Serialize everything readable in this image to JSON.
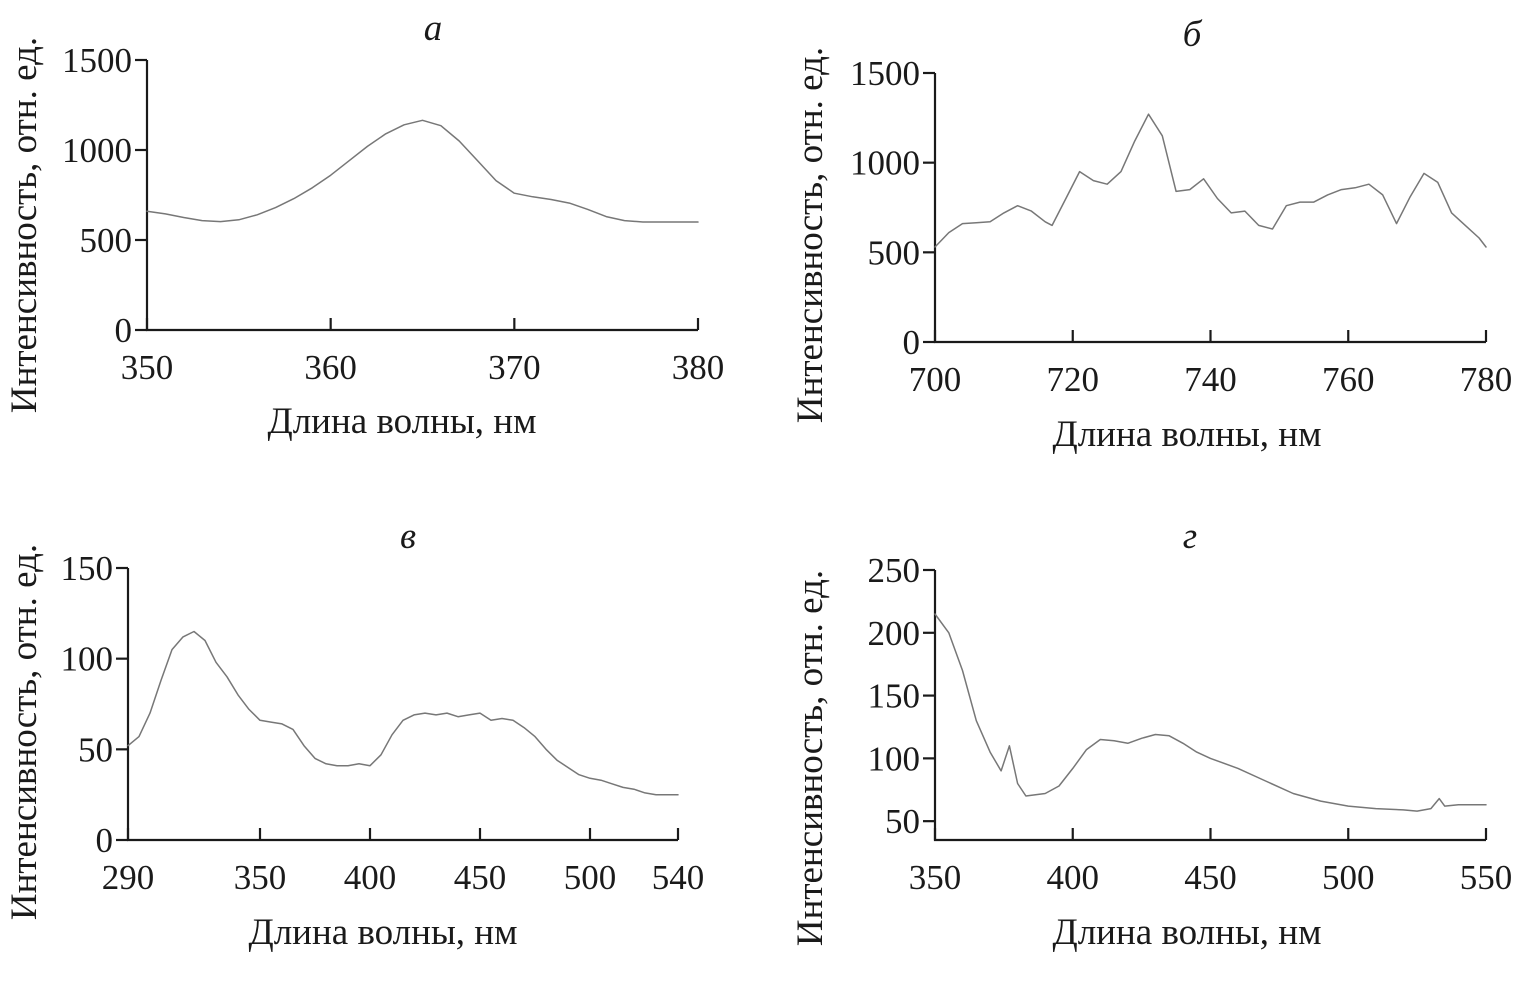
{
  "line_color": "#777777",
  "axis_color": "#1a1a1a",
  "chart_data": [
    {
      "id": "a",
      "type": "line",
      "title": "а",
      "xlabel": "Длина волны, нм",
      "ylabel": "Интенсивность, отн. ед.",
      "xlim": [
        350,
        380
      ],
      "ylim": [
        0,
        1500
      ],
      "xticks": [
        350,
        360,
        370,
        380
      ],
      "yticks": [
        0,
        500,
        1000,
        1500
      ],
      "series": [
        {
          "name": "a",
          "x": [
            350,
            351,
            352,
            353,
            354,
            355,
            356,
            357,
            358,
            359,
            360,
            361,
            362,
            363,
            364,
            365,
            366,
            367,
            368,
            369,
            370,
            371,
            372,
            373,
            374,
            375,
            376,
            377,
            378,
            379,
            380
          ],
          "y": [
            660,
            645,
            625,
            608,
            602,
            612,
            640,
            680,
            730,
            790,
            860,
            940,
            1020,
            1090,
            1140,
            1165,
            1135,
            1050,
            940,
            830,
            760,
            740,
            725,
            705,
            670,
            630,
            608,
            600,
            600,
            600,
            600
          ]
        }
      ]
    },
    {
      "id": "b",
      "type": "line",
      "title": "б",
      "xlabel": "Длина волны, нм",
      "ylabel": "Интенсивность, отн. ед.",
      "xlim": [
        700,
        780
      ],
      "ylim": [
        0,
        1500
      ],
      "xticks": [
        700,
        720,
        740,
        760,
        780
      ],
      "yticks": [
        0,
        500,
        1000,
        1500
      ],
      "series": [
        {
          "name": "b",
          "x": [
            700,
            702,
            704,
            706,
            708,
            710,
            712,
            714,
            716,
            717,
            719,
            721,
            723,
            725,
            727,
            729,
            731,
            733,
            735,
            737,
            739,
            741,
            743,
            745,
            747,
            749,
            751,
            753,
            755,
            757,
            759,
            761,
            763,
            765,
            767,
            769,
            771,
            773,
            775,
            777,
            779,
            780
          ],
          "y": [
            530,
            610,
            660,
            665,
            670,
            720,
            760,
            730,
            670,
            650,
            800,
            950,
            900,
            880,
            950,
            1120,
            1270,
            1150,
            840,
            850,
            910,
            800,
            720,
            730,
            650,
            630,
            760,
            780,
            780,
            820,
            850,
            860,
            880,
            820,
            660,
            810,
            940,
            890,
            720,
            650,
            580,
            530
          ]
        }
      ]
    },
    {
      "id": "c",
      "type": "line",
      "title": "в",
      "xlabel": "Длина волны, нм",
      "ylabel": "Интенсивность, отн. ед.",
      "xlim": [
        290,
        540
      ],
      "ylim": [
        0,
        150
      ],
      "xticks": [
        290,
        350,
        400,
        450,
        500,
        540
      ],
      "yticks": [
        0,
        50,
        100,
        150
      ],
      "series": [
        {
          "name": "c",
          "x": [
            290,
            295,
            300,
            305,
            310,
            315,
            320,
            325,
            330,
            335,
            340,
            345,
            350,
            355,
            360,
            365,
            370,
            375,
            380,
            385,
            390,
            395,
            400,
            405,
            410,
            415,
            420,
            425,
            430,
            435,
            440,
            445,
            450,
            455,
            460,
            465,
            470,
            475,
            480,
            485,
            490,
            495,
            500,
            505,
            510,
            515,
            520,
            525,
            530,
            535,
            540
          ],
          "y": [
            52,
            57,
            70,
            88,
            105,
            112,
            115,
            110,
            98,
            90,
            80,
            72,
            66,
            65,
            64,
            61,
            52,
            45,
            42,
            41,
            41,
            42,
            41,
            47,
            58,
            66,
            69,
            70,
            69,
            70,
            68,
            69,
            70,
            66,
            67,
            66,
            62,
            57,
            50,
            44,
            40,
            36,
            34,
            33,
            31,
            29,
            28,
            26,
            25,
            25,
            25
          ]
        }
      ]
    },
    {
      "id": "d",
      "type": "line",
      "title": "г",
      "xlabel": "Длина волны, нм",
      "ylabel": "Интенсивность, отн. ед.",
      "xlim": [
        350,
        550
      ],
      "ylim": [
        35,
        250
      ],
      "xticks": [
        350,
        400,
        450,
        500,
        550
      ],
      "yticks": [
        50,
        100,
        150,
        200,
        250
      ],
      "series": [
        {
          "name": "d",
          "x": [
            350,
            355,
            360,
            365,
            370,
            374,
            377,
            380,
            383,
            390,
            395,
            400,
            405,
            410,
            415,
            420,
            425,
            430,
            435,
            440,
            445,
            450,
            460,
            470,
            480,
            490,
            500,
            510,
            520,
            525,
            530,
            533,
            535,
            540,
            545,
            550
          ],
          "y": [
            215,
            200,
            170,
            130,
            105,
            90,
            110,
            80,
            70,
            72,
            78,
            92,
            107,
            115,
            114,
            112,
            116,
            119,
            118,
            112,
            105,
            100,
            92,
            82,
            72,
            66,
            62,
            60,
            59,
            58,
            60,
            68,
            62,
            63,
            63,
            63
          ]
        }
      ]
    }
  ]
}
